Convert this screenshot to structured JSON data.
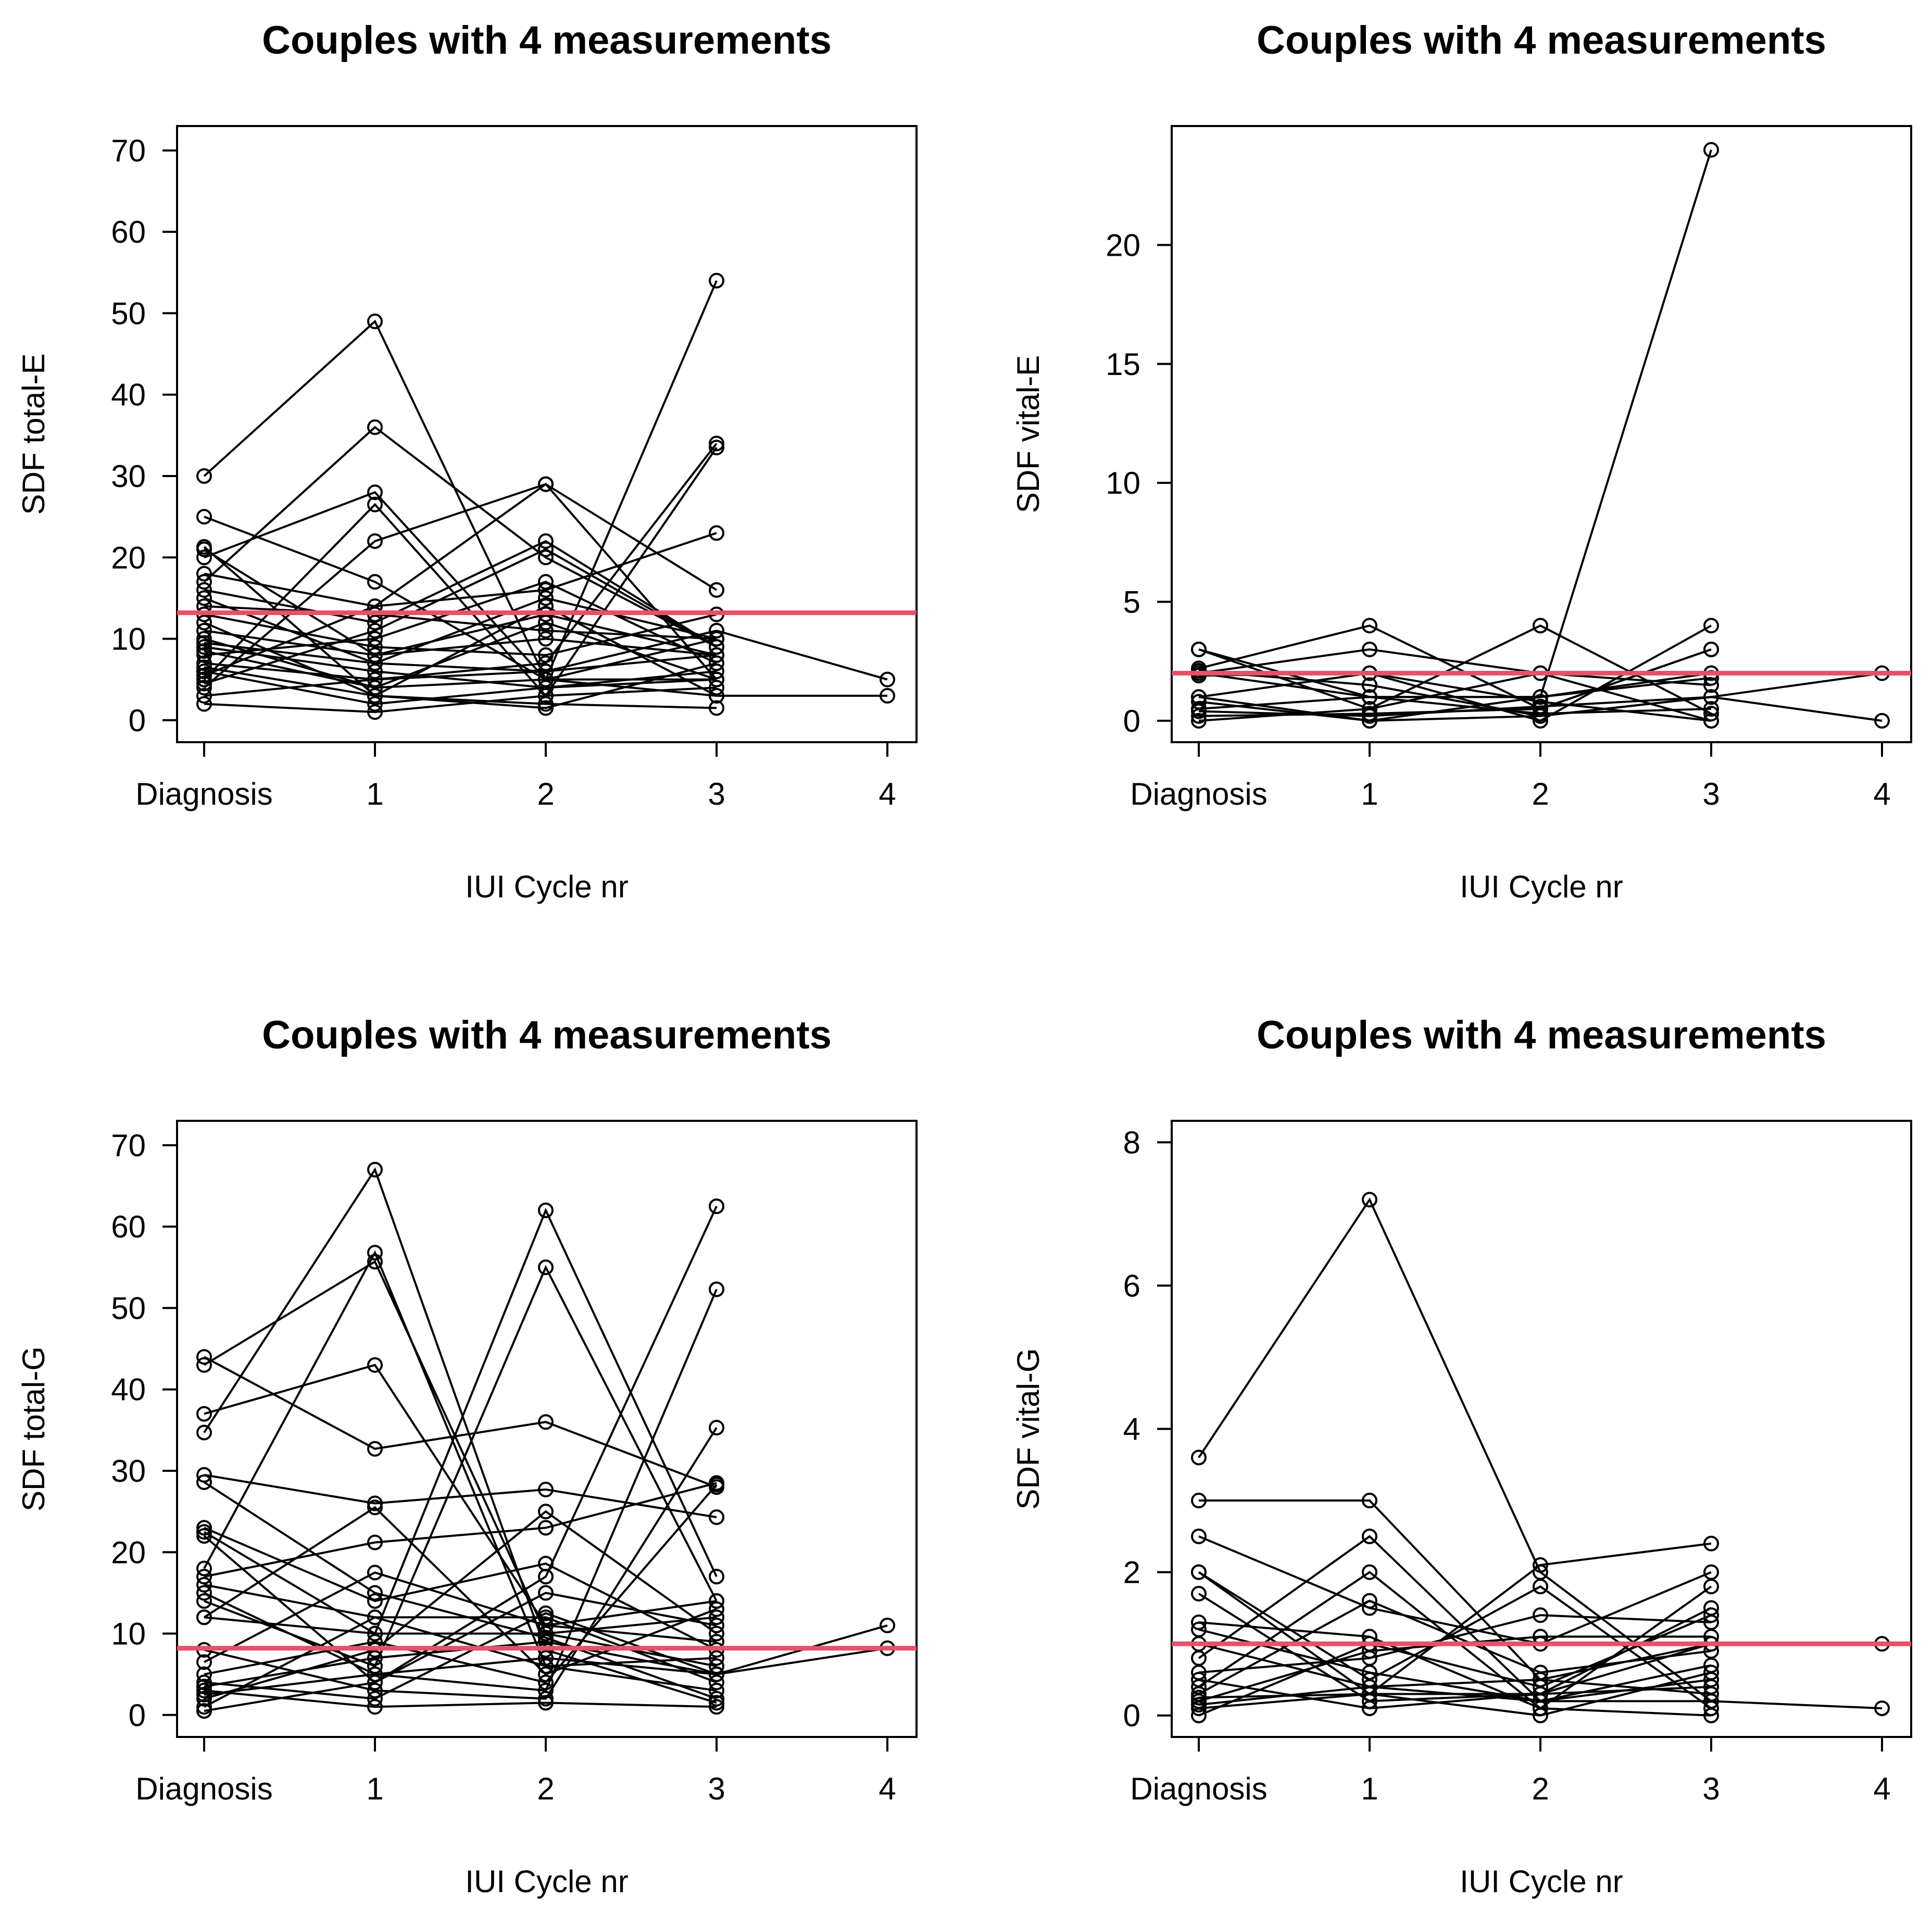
{
  "chart_data": [
    {
      "type": "line",
      "title": "Couples with 4 measurements",
      "xlabel": "IUI Cycle nr",
      "ylabel": "SDF total-E",
      "x_categories": [
        "Diagnosis",
        "1",
        "2",
        "3",
        "4"
      ],
      "yticks": [
        0,
        10,
        20,
        30,
        40,
        50,
        60,
        70
      ],
      "ylim": [
        -2.7,
        73
      ],
      "reference_line": 13.2,
      "reference_color": "#e8506a",
      "series": [
        {
          "values": [
            30,
            49,
            5,
            54
          ]
        },
        {
          "values": [
            25,
            17,
            5,
            5
          ]
        },
        {
          "values": [
            21.3,
            3,
            14,
            3
          ]
        },
        {
          "values": [
            21,
            8,
            13,
            8
          ]
        },
        {
          "values": [
            20,
            28,
            5,
            10
          ]
        },
        {
          "values": [
            18,
            14,
            29,
            16
          ]
        },
        {
          "values": [
            17,
            36,
            20,
            9
          ]
        },
        {
          "values": [
            16,
            12,
            22,
            9
          ]
        },
        {
          "values": [
            15,
            7,
            15,
            10
          ]
        },
        {
          "values": [
            14,
            13,
            11,
            10
          ]
        },
        {
          "values": [
            13,
            9,
            8,
            13
          ]
        },
        {
          "values": [
            12,
            3,
            1.5,
            7
          ]
        },
        {
          "values": [
            11,
            8,
            10,
            8
          ]
        },
        {
          "values": [
            10,
            4,
            12,
            5
          ]
        },
        {
          "values": [
            9,
            6,
            4,
            6
          ]
        },
        {
          "values": [
            8,
            10,
            17,
            7
          ]
        },
        {
          "values": [
            7,
            5,
            6,
            8
          ]
        },
        {
          "values": [
            6,
            2,
            4,
            5
          ]
        },
        {
          "values": [
            5,
            26.5,
            3,
            4
          ]
        },
        {
          "values": [
            4,
            22,
            29,
            5
          ]
        },
        {
          "values": [
            3,
            5,
            7,
            34
          ]
        },
        {
          "values": [
            2,
            1,
            3,
            33.5
          ]
        },
        {
          "values": [
            4.5,
            11,
            21,
            9
          ]
        },
        {
          "values": [
            5.5,
            14,
            16,
            23
          ]
        },
        {
          "values": [
            6.5,
            3,
            2,
            1.5
          ]
        },
        {
          "values": [
            9.5,
            7,
            6,
            11
          ],
          "extra": [
            5
          ]
        },
        {
          "values": [
            8.5,
            4,
            5,
            3
          ],
          "extra": [
            3
          ]
        }
      ]
    },
    {
      "type": "line",
      "title": "Couples with 4 measurements",
      "xlabel": "IUI Cycle nr",
      "ylabel": "SDF vital-E",
      "x_categories": [
        "Diagnosis",
        "1",
        "2",
        "3",
        "4"
      ],
      "yticks": [
        0,
        5,
        10,
        15,
        20
      ],
      "ylim": [
        -0.9,
        25
      ],
      "reference_line": 2,
      "reference_color": "#e8506a",
      "series": [
        {
          "values": [
            2,
            1,
            1,
            24
          ]
        },
        {
          "values": [
            3,
            0.5,
            4,
            0.3
          ]
        },
        {
          "values": [
            2.2,
            4,
            0.5,
            3
          ]
        },
        {
          "values": [
            2,
            3,
            2,
            0
          ]
        },
        {
          "values": [
            1.9,
            2,
            0,
            4
          ]
        },
        {
          "values": [
            1,
            0,
            0.2,
            1
          ]
        },
        {
          "values": [
            0.5,
            1,
            1,
            2
          ]
        },
        {
          "values": [
            0.2,
            0.3,
            0.5,
            3
          ]
        },
        {
          "values": [
            0,
            0.5,
            2,
            1.5
          ]
        },
        {
          "values": [
            3,
            1,
            0.3,
            0.5
          ]
        },
        {
          "values": [
            1,
            2,
            0.8,
            0
          ]
        },
        {
          "values": [
            0.8,
            0,
            1,
            1.8
          ]
        },
        {
          "values": [
            0.4,
            0.2,
            0.6,
            1
          ],
          "extra": [
            2
          ]
        },
        {
          "values": [
            2.1,
            1.5,
            0.2,
            1
          ],
          "extra": [
            0
          ]
        }
      ]
    },
    {
      "type": "line",
      "title": "Couples with 4 measurements",
      "xlabel": "IUI Cycle nr",
      "ylabel": "SDF total-G",
      "x_categories": [
        "Diagnosis",
        "1",
        "2",
        "3",
        "4"
      ],
      "yticks": [
        0,
        10,
        20,
        30,
        40,
        50,
        60,
        70
      ],
      "ylim": [
        -2.7,
        73
      ],
      "reference_line": 8.2,
      "reference_color": "#e8506a",
      "series": [
        {
          "values": [
            44,
            32.7,
            36,
            28
          ]
        },
        {
          "values": [
            43,
            55.7,
            10,
            12
          ]
        },
        {
          "values": [
            37,
            43,
            11,
            14
          ]
        },
        {
          "values": [
            34.7,
            67,
            8,
            1.5
          ]
        },
        {
          "values": [
            29.5,
            26,
            27.7,
            24.3
          ]
        },
        {
          "values": [
            28.6,
            15,
            9.5,
            2
          ]
        },
        {
          "values": [
            23,
            14,
            18.6,
            8
          ]
        },
        {
          "values": [
            22.5,
            10,
            10,
            6
          ]
        },
        {
          "values": [
            22,
            4,
            17,
            62.5
          ]
        },
        {
          "values": [
            18,
            56.8,
            6,
            7
          ]
        },
        {
          "values": [
            17,
            21.2,
            23,
            28.5
          ]
        },
        {
          "values": [
            16,
            12,
            12,
            4
          ]
        },
        {
          "values": [
            15,
            5,
            3,
            52.3
          ]
        },
        {
          "values": [
            14,
            6,
            55,
            14
          ]
        },
        {
          "values": [
            12,
            25.5,
            5,
            13
          ]
        },
        {
          "values": [
            12,
            10,
            62,
            17
          ]
        },
        {
          "values": [
            8,
            3,
            2,
            35.3
          ]
        },
        {
          "values": [
            6.5,
            17.5,
            11,
            9
          ]
        },
        {
          "values": [
            5,
            9,
            4,
            28.3
          ]
        },
        {
          "values": [
            4,
            2,
            12.5,
            5
          ]
        },
        {
          "values": [
            3,
            1,
            1.5,
            1
          ]
        },
        {
          "values": [
            2,
            8,
            25,
            10
          ]
        },
        {
          "values": [
            1,
            12,
            6,
            3
          ]
        },
        {
          "values": [
            0.5,
            4,
            15,
            11
          ]
        },
        {
          "values": [
            3.5,
            7,
            9,
            5
          ],
          "extra": [
            11
          ]
        },
        {
          "values": [
            2.5,
            5,
            7,
            5
          ],
          "extra": [
            8.2
          ]
        }
      ]
    },
    {
      "type": "line",
      "title": "Couples with 4 measurements",
      "xlabel": "IUI Cycle nr",
      "ylabel": "SDF vital-G",
      "x_categories": [
        "Diagnosis",
        "1",
        "2",
        "3",
        "4"
      ],
      "yticks": [
        0,
        2,
        4,
        6,
        8
      ],
      "ylim": [
        -0.3,
        8.3
      ],
      "reference_line": 1,
      "reference_color": "#e8506a",
      "series": [
        {
          "values": [
            3.6,
            7.2,
            2,
            0.2
          ]
        },
        {
          "values": [
            3,
            3,
            0.5,
            0.3
          ]
        },
        {
          "values": [
            2.5,
            1.5,
            1,
            2
          ]
        },
        {
          "values": [
            2,
            0.3,
            2.1,
            2.4
          ]
        },
        {
          "values": [
            2,
            0.5,
            1.8,
            0.1
          ]
        },
        {
          "values": [
            1.7,
            0.2,
            0.3,
            1.5
          ]
        },
        {
          "values": [
            1.3,
            1.1,
            0.1,
            1.8
          ]
        },
        {
          "values": [
            1.2,
            0.6,
            0.2,
            0.5
          ]
        },
        {
          "values": [
            1,
            0.4,
            0.5,
            1
          ]
        },
        {
          "values": [
            0.8,
            2.5,
            0.2,
            0.7
          ]
        },
        {
          "values": [
            0.6,
            0.8,
            1.4,
            1.3
          ]
        },
        {
          "values": [
            0.5,
            0.1,
            0.3,
            0.4
          ]
        },
        {
          "values": [
            0.4,
            2,
            0.1,
            0
          ]
        },
        {
          "values": [
            0.3,
            1.6,
            0.6,
            0.9
          ]
        },
        {
          "values": [
            0.2,
            0.9,
            1.1,
            1.1
          ]
        },
        {
          "values": [
            0.1,
            0.3,
            0,
            0.6
          ]
        },
        {
          "values": [
            0,
            1,
            0.4,
            1.4
          ]
        },
        {
          "values": [
            0.15,
            0.4,
            0.2,
            0.2
          ],
          "extra": [
            0.1
          ]
        },
        {
          "values": [
            0.25,
            0.3,
            0.3,
            1
          ],
          "extra": [
            1
          ]
        }
      ]
    }
  ]
}
